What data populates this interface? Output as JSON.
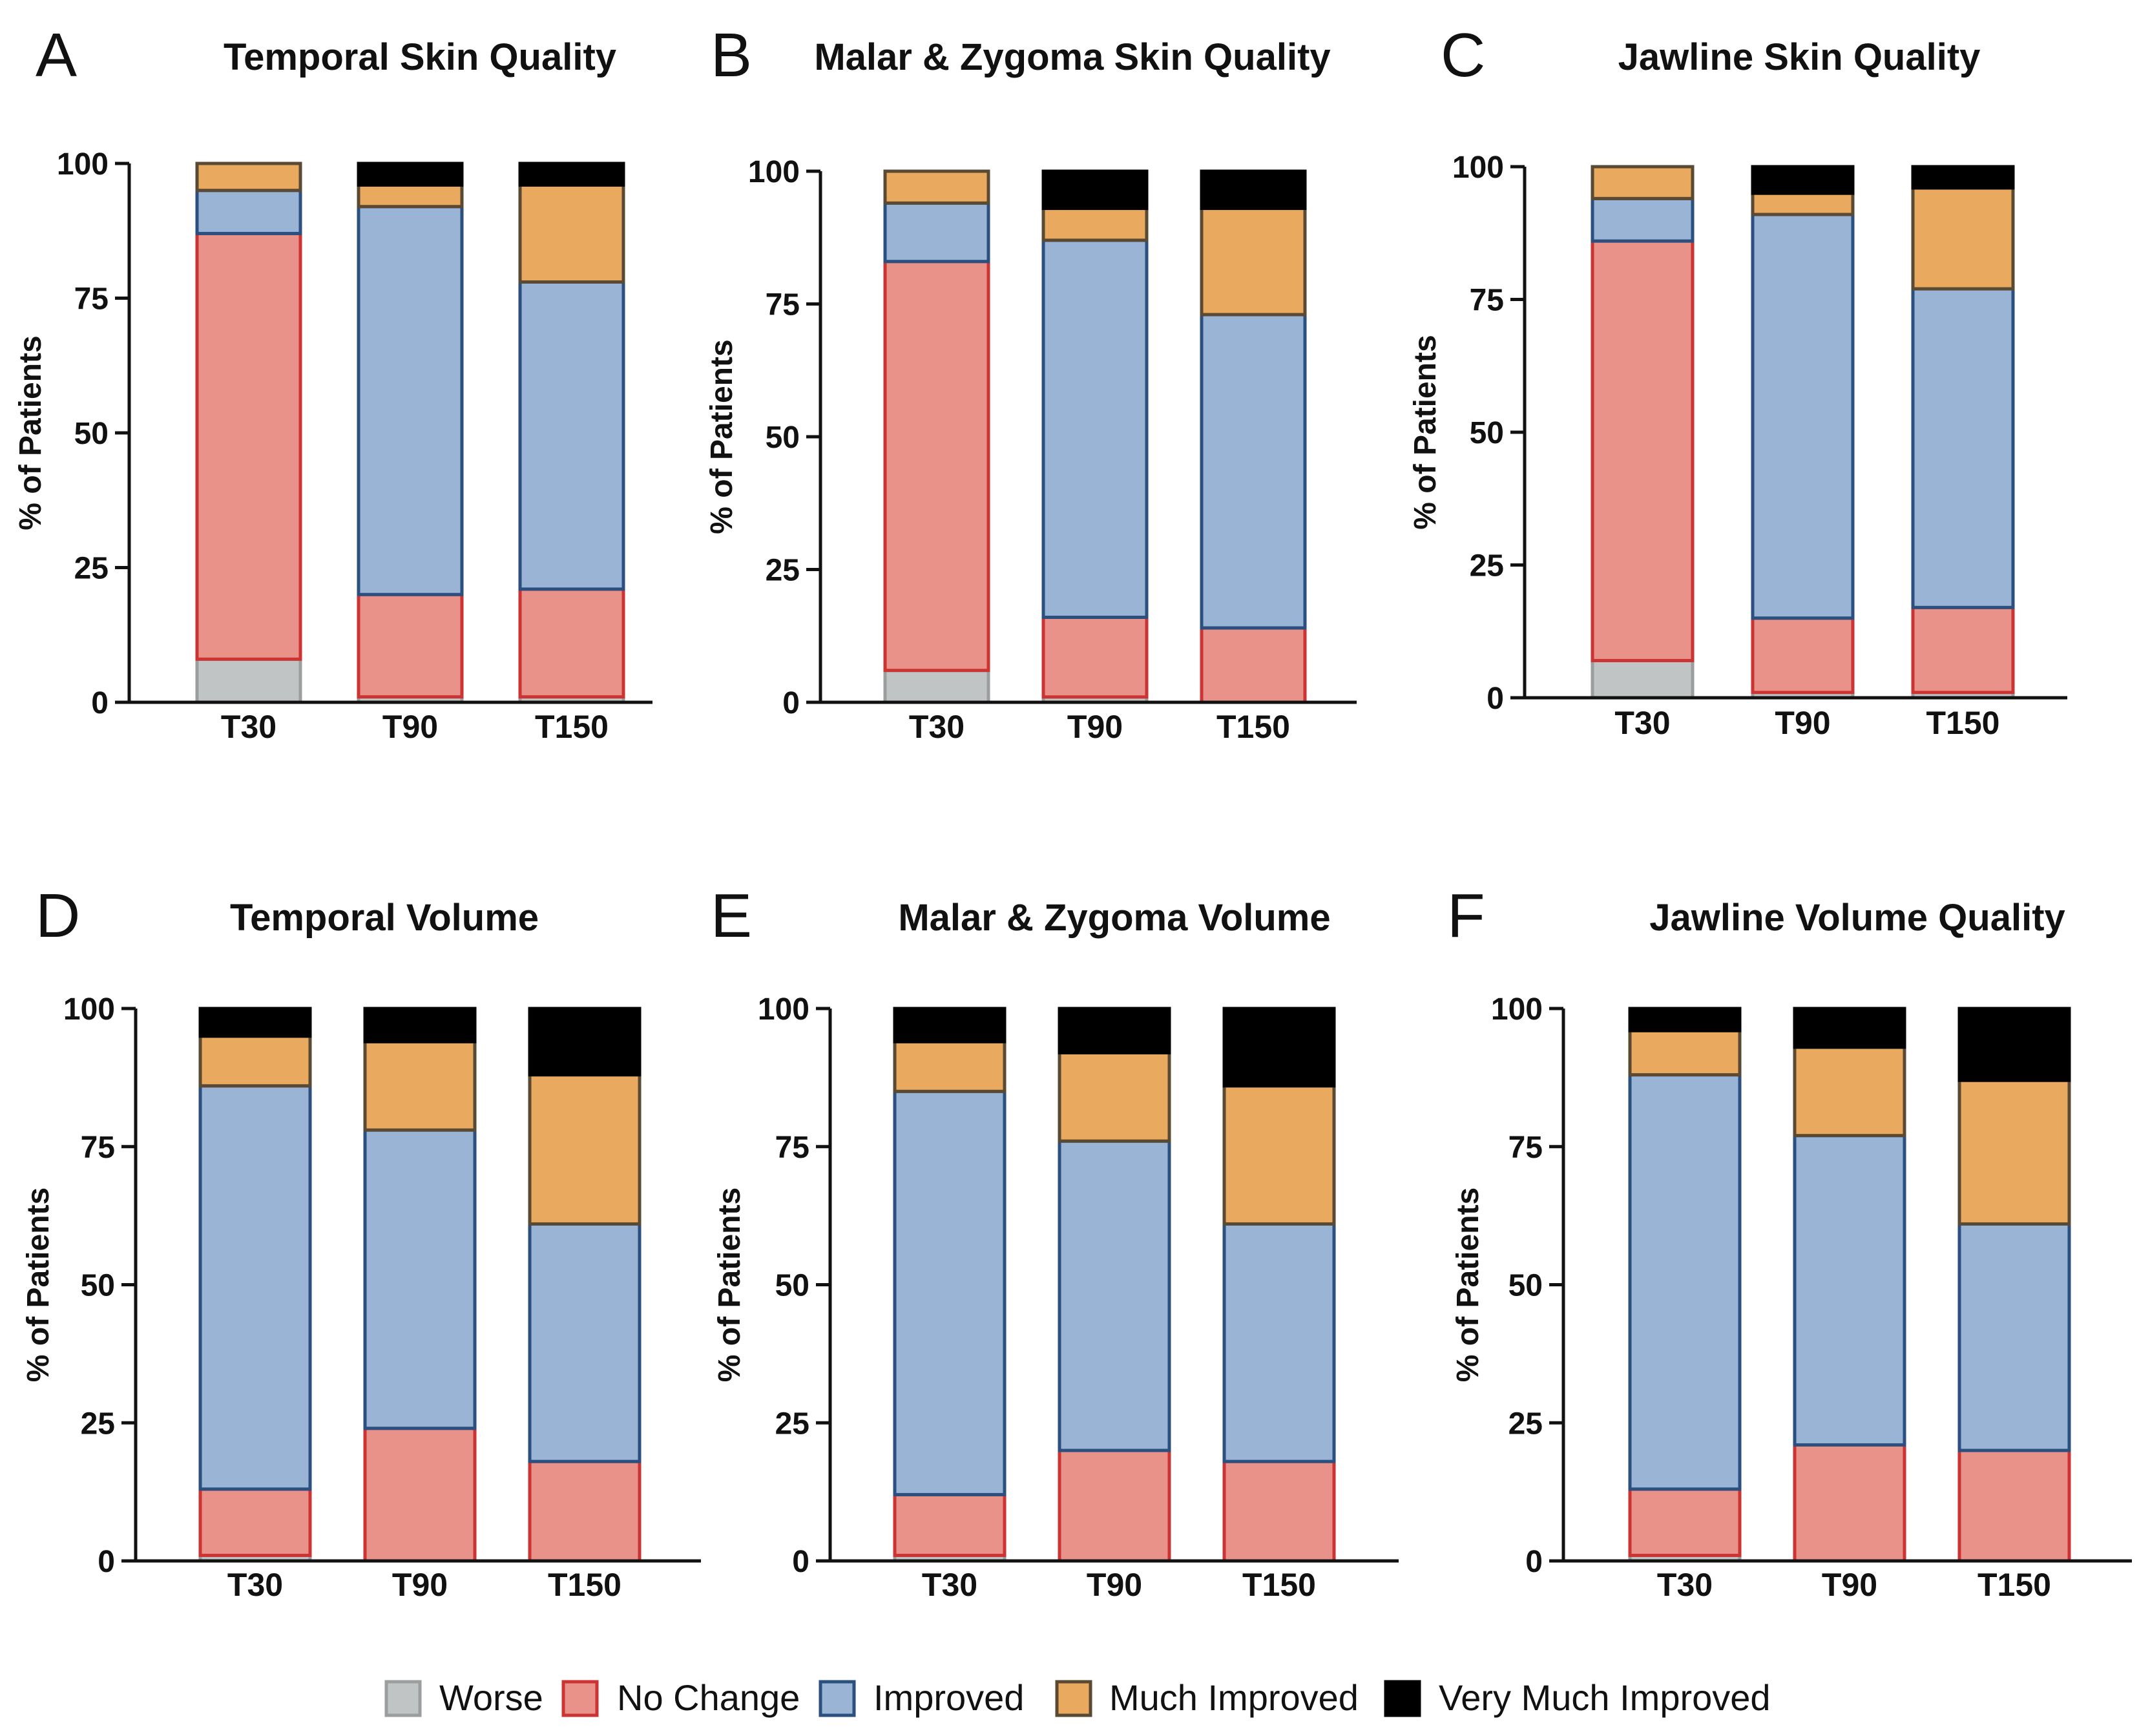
{
  "chart_data": [
    {
      "type": "bar",
      "stacked": true,
      "panel": "A",
      "title": "Temporal Skin Quality",
      "ylabel": "% of Patients",
      "xlabel": "",
      "ylim": [
        0,
        100
      ],
      "yticks": [
        "0",
        "25",
        "50",
        "75",
        "100"
      ],
      "categories": [
        "T30",
        "T90",
        "T150"
      ],
      "series": [
        {
          "name": "Worse",
          "values": [
            8,
            1,
            1
          ]
        },
        {
          "name": "No Change",
          "values": [
            79,
            19,
            20
          ]
        },
        {
          "name": "Improved",
          "values": [
            8,
            72,
            57
          ]
        },
        {
          "name": "Much Improved",
          "values": [
            5,
            4,
            18
          ]
        },
        {
          "name": "Very Much Improved",
          "values": [
            0,
            4,
            4
          ]
        }
      ]
    },
    {
      "type": "bar",
      "stacked": true,
      "panel": "B",
      "title": "Malar & Zygoma Skin Quality",
      "ylabel": "% of Patients",
      "xlabel": "",
      "ylim": [
        0,
        100
      ],
      "yticks": [
        "0",
        "25",
        "50",
        "75",
        "100"
      ],
      "categories": [
        "T30",
        "T90",
        "T150"
      ],
      "series": [
        {
          "name": "Worse",
          "values": [
            6,
            1,
            0
          ]
        },
        {
          "name": "No Change",
          "values": [
            77,
            15,
            14
          ]
        },
        {
          "name": "Improved",
          "values": [
            11,
            71,
            59
          ]
        },
        {
          "name": "Much Improved",
          "values": [
            6,
            6,
            20
          ]
        },
        {
          "name": "Very Much Improved",
          "values": [
            0,
            7,
            7
          ]
        }
      ]
    },
    {
      "type": "bar",
      "stacked": true,
      "panel": "C",
      "title": "Jawline Skin Quality",
      "ylabel": "% of Patients",
      "xlabel": "",
      "ylim": [
        0,
        100
      ],
      "yticks": [
        "0",
        "25",
        "50",
        "75",
        "100"
      ],
      "categories": [
        "T30",
        "T90",
        "T150"
      ],
      "series": [
        {
          "name": "Worse",
          "values": [
            7,
            1,
            1
          ]
        },
        {
          "name": "No Change",
          "values": [
            79,
            14,
            16
          ]
        },
        {
          "name": "Improved",
          "values": [
            8,
            76,
            60
          ]
        },
        {
          "name": "Much Improved",
          "values": [
            6,
            4,
            19
          ]
        },
        {
          "name": "Very Much Improved",
          "values": [
            0,
            5,
            4
          ]
        }
      ]
    },
    {
      "type": "bar",
      "stacked": true,
      "panel": "D",
      "title": "Temporal Volume",
      "ylabel": "% of Patients",
      "xlabel": "",
      "ylim": [
        0,
        100
      ],
      "yticks": [
        "0",
        "25",
        "50",
        "75",
        "100"
      ],
      "categories": [
        "T30",
        "T90",
        "T150"
      ],
      "series": [
        {
          "name": "Worse",
          "values": [
            1,
            0,
            0
          ]
        },
        {
          "name": "No Change",
          "values": [
            12,
            24,
            18
          ]
        },
        {
          "name": "Improved",
          "values": [
            73,
            54,
            43
          ]
        },
        {
          "name": "Much Improved",
          "values": [
            9,
            16,
            27
          ]
        },
        {
          "name": "Very Much Improved",
          "values": [
            5,
            6,
            12
          ]
        }
      ]
    },
    {
      "type": "bar",
      "stacked": true,
      "panel": "E",
      "title": "Malar & Zygoma Volume",
      "ylabel": "% of Patients",
      "xlabel": "",
      "ylim": [
        0,
        100
      ],
      "yticks": [
        "0",
        "25",
        "50",
        "75",
        "100"
      ],
      "categories": [
        "T30",
        "T90",
        "T150"
      ],
      "series": [
        {
          "name": "Worse",
          "values": [
            1,
            0,
            0
          ]
        },
        {
          "name": "No Change",
          "values": [
            11,
            20,
            18
          ]
        },
        {
          "name": "Improved",
          "values": [
            73,
            56,
            43
          ]
        },
        {
          "name": "Much Improved",
          "values": [
            9,
            16,
            25
          ]
        },
        {
          "name": "Very Much Improved",
          "values": [
            6,
            8,
            14
          ]
        }
      ]
    },
    {
      "type": "bar",
      "stacked": true,
      "panel": "F",
      "title": "Jawline Volume Quality",
      "ylabel": "% of Patients",
      "xlabel": "",
      "ylim": [
        0,
        100
      ],
      "yticks": [
        "0",
        "25",
        "50",
        "75",
        "100"
      ],
      "categories": [
        "T30",
        "T90",
        "T150"
      ],
      "series": [
        {
          "name": "Worse",
          "values": [
            1,
            0,
            0
          ]
        },
        {
          "name": "No Change",
          "values": [
            12,
            21,
            20
          ]
        },
        {
          "name": "Improved",
          "values": [
            75,
            56,
            41
          ]
        },
        {
          "name": "Much Improved",
          "values": [
            8,
            16,
            26
          ]
        },
        {
          "name": "Very Much Improved",
          "values": [
            4,
            7,
            13
          ]
        }
      ]
    }
  ],
  "legend": {
    "position": "bottom-center",
    "items": [
      {
        "label": "Worse",
        "fill": "#c0c4c4",
        "stroke": "#9a9e9e"
      },
      {
        "label": "No Change",
        "fill": "#e8928a",
        "stroke": "#cc3333"
      },
      {
        "label": "Improved",
        "fill": "#9ab4d6",
        "stroke": "#2b4f7e"
      },
      {
        "label": "Much Improved",
        "fill": "#e9a95f",
        "stroke": "#5a4a33"
      },
      {
        "label": "Very Much Improved",
        "fill": "#000000",
        "stroke": "#000000"
      }
    ]
  }
}
